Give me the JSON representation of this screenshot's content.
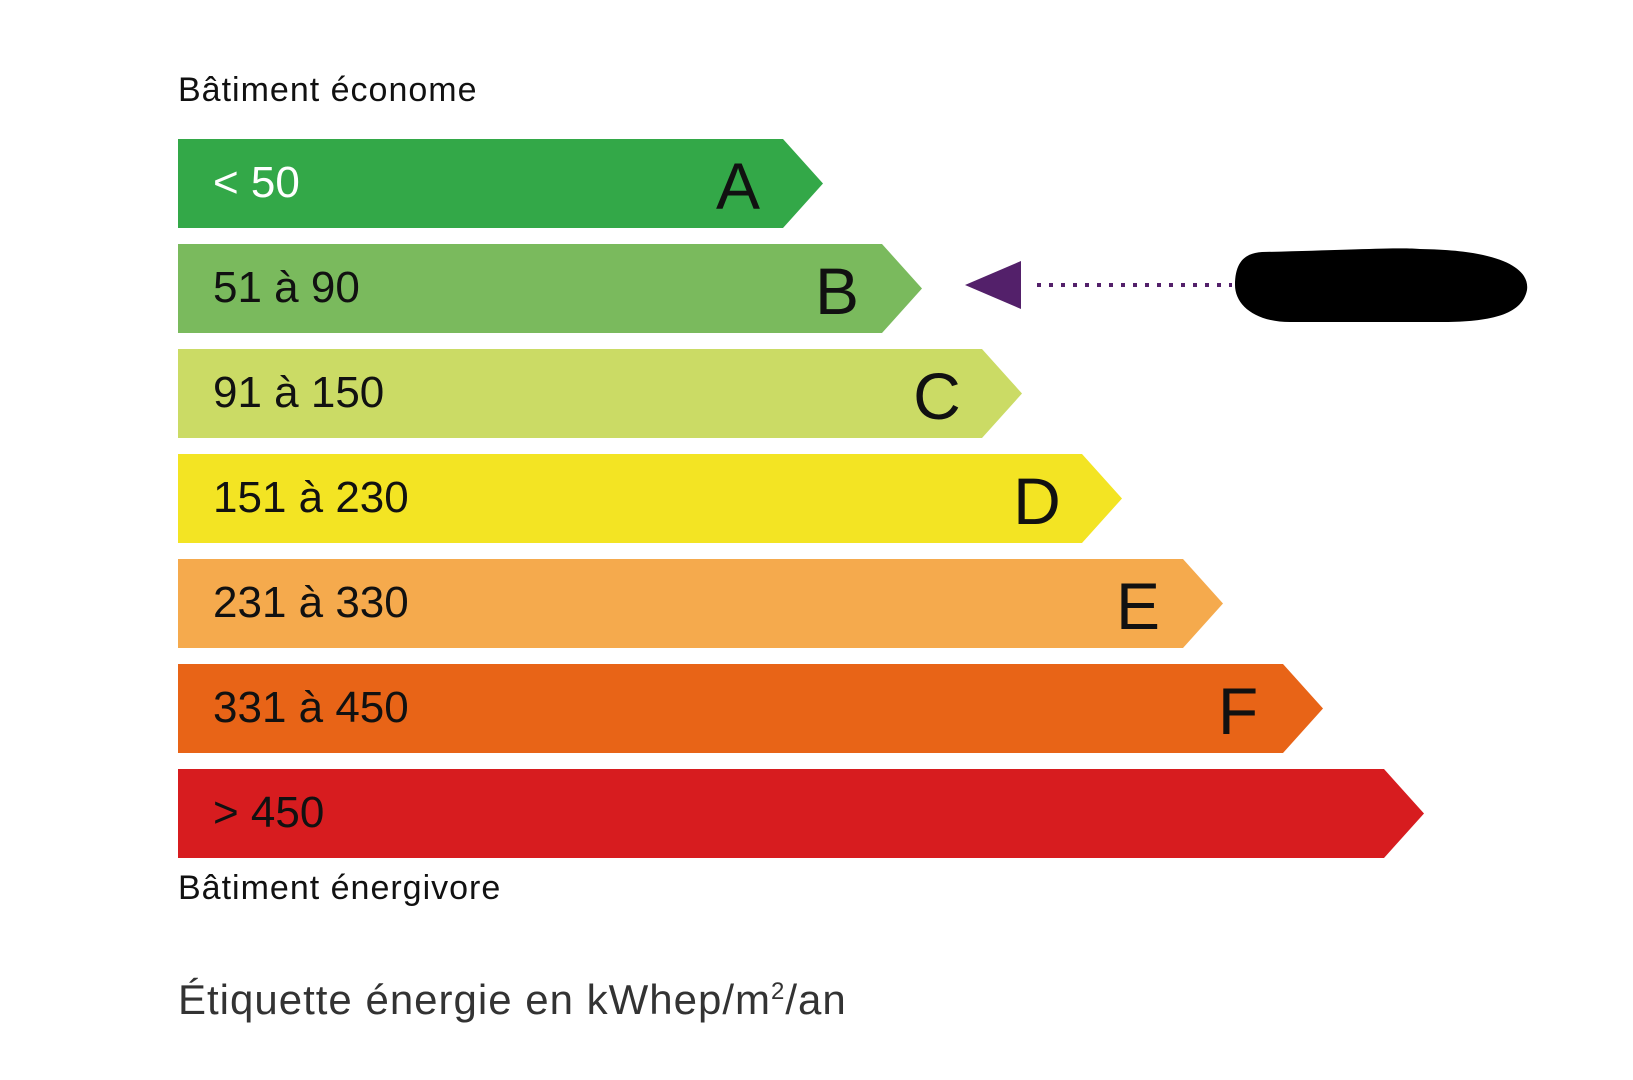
{
  "top_label": "Bâtiment économe",
  "bottom_label": "Bâtiment énergivore",
  "footer": {
    "text": "Étiquette énergie en kWhep/m",
    "sup": "2",
    "suffix": "/an"
  },
  "classes": [
    {
      "range": "< 50",
      "letter": "A",
      "color": "#33a848",
      "text_color": "#ffffff"
    },
    {
      "range": "51 à 90",
      "letter": "B",
      "color": "#7aba5d",
      "text_color": "#111111"
    },
    {
      "range": "91 à 150",
      "letter": "C",
      "color": "#cbdb65",
      "text_color": "#111111"
    },
    {
      "range": "151 à 230",
      "letter": "D",
      "color": "#f3e423",
      "text_color": "#111111"
    },
    {
      "range": "231 à 330",
      "letter": "E",
      "color": "#f5aa4d",
      "text_color": "#111111"
    },
    {
      "range": "331 à 450",
      "letter": "F",
      "color": "#e86417",
      "text_color": "#111111"
    },
    {
      "range": "> 450",
      "letter": "",
      "color": "#d71c1f",
      "text_color": "#111111"
    }
  ],
  "indicator": {
    "class": "B",
    "color": "#53206a",
    "value_redacted": true
  }
}
